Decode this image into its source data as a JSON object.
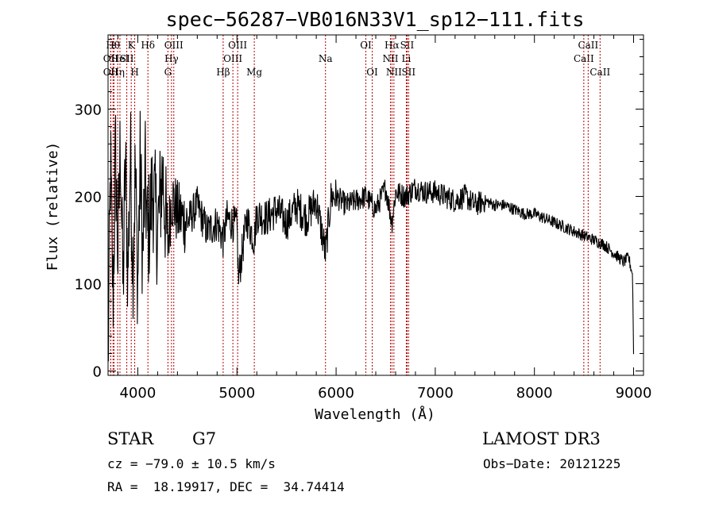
{
  "chart_data": {
    "type": "line",
    "title": "spec−56287−VB016N33V1_sp12−111.fits",
    "xlabel": "Wavelength (Å)",
    "ylabel": "Flux (relative)",
    "xlim": [
      3700,
      9100
    ],
    "ylim": [
      -5,
      385
    ],
    "xticks": [
      4000,
      5000,
      6000,
      7000,
      8000,
      9000
    ],
    "yticks": [
      0,
      100,
      200,
      300
    ],
    "xtick_labels": [
      "4000",
      "5000",
      "6000",
      "7000",
      "8000",
      "9000"
    ],
    "ytick_labels": [
      "0",
      "100",
      "200",
      "300"
    ],
    "series": [
      {
        "name": "flux",
        "x": [
          3700,
          3725,
          3750,
          3775,
          3800,
          3825,
          3850,
          3875,
          3900,
          3925,
          3950,
          3975,
          4000,
          4025,
          4050,
          4075,
          4100,
          4150,
          4200,
          4250,
          4300,
          4340,
          4400,
          4500,
          4600,
          4700,
          4800,
          4861,
          4900,
          5000,
          5015,
          5100,
          5175,
          5200,
          5300,
          5400,
          5500,
          5600,
          5700,
          5800,
          5893,
          5950,
          6000,
          6100,
          6200,
          6300,
          6400,
          6500,
          6563,
          6600,
          6700,
          6800,
          6900,
          7000,
          7100,
          7200,
          7300,
          7400,
          7500,
          7600,
          7700,
          7800,
          7900,
          8000,
          8100,
          8200,
          8300,
          8400,
          8500,
          8600,
          8700,
          8800,
          8850,
          8900,
          8950,
          8990,
          9000
        ],
        "y": [
          0,
          240,
          80,
          250,
          130,
          270,
          90,
          240,
          110,
          250,
          120,
          230,
          100,
          240,
          130,
          220,
          150,
          210,
          160,
          230,
          140,
          200,
          180,
          170,
          190,
          160,
          170,
          150,
          175,
          165,
          105,
          175,
          150,
          180,
          175,
          185,
          170,
          190,
          175,
          195,
          135,
          200,
          200,
          190,
          195,
          200,
          185,
          210,
          170,
          205,
          200,
          210,
          205,
          205,
          200,
          195,
          200,
          190,
          195,
          190,
          190,
          185,
          180,
          180,
          175,
          170,
          165,
          160,
          155,
          150,
          145,
          135,
          130,
          125,
          130,
          110,
          20
        ]
      }
    ],
    "line_markers": [
      {
        "x": 3727,
        "label": "OII",
        "row": 2
      },
      {
        "x": 3727,
        "label": "OII",
        "row": 3
      },
      {
        "x": 3750,
        "label": "Hθ",
        "row": 1
      },
      {
        "x": 3760,
        "label": "ϵ",
        "row": 1
      },
      {
        "x": 3797,
        "label": "Hη",
        "row": 3
      },
      {
        "x": 3820,
        "label": "HeI",
        "row": 2
      },
      {
        "x": 3889,
        "label": "SII",
        "row": 2
      },
      {
        "x": 3934,
        "label": "K",
        "row": 1
      },
      {
        "x": 3969,
        "label": "H",
        "row": 3
      },
      {
        "x": 4102,
        "label": "Hδ",
        "row": 1
      },
      {
        "x": 4304,
        "label": "G",
        "row": 3
      },
      {
        "x": 4340,
        "label": "Hγ",
        "row": 2
      },
      {
        "x": 4363,
        "label": "OIII",
        "row": 1
      },
      {
        "x": 4861,
        "label": "Hβ",
        "row": 3
      },
      {
        "x": 4959,
        "label": "OIII",
        "row": 2
      },
      {
        "x": 5007,
        "label": "OIII",
        "row": 1
      },
      {
        "x": 5175,
        "label": "Mg",
        "row": 3
      },
      {
        "x": 5893,
        "label": "Na",
        "row": 2
      },
      {
        "x": 6300,
        "label": "OI",
        "row": 1
      },
      {
        "x": 6364,
        "label": "OI",
        "row": 3
      },
      {
        "x": 6548,
        "label": "NII",
        "row": 2
      },
      {
        "x": 6563,
        "label": "Hα",
        "row": 1
      },
      {
        "x": 6583,
        "label": "NII",
        "row": 3
      },
      {
        "x": 6708,
        "label": "Li",
        "row": 2
      },
      {
        "x": 6716,
        "label": "SII",
        "row": 1
      },
      {
        "x": 6731,
        "label": "SII",
        "row": 3
      },
      {
        "x": 8498,
        "label": "CaII",
        "row": 2
      },
      {
        "x": 8542,
        "label": "CaII",
        "row": 1
      },
      {
        "x": 8662,
        "label": "CaII",
        "row": 3
      }
    ]
  },
  "info": {
    "object_class": "STAR",
    "subclass": "G7",
    "survey": "LAMOST DR3",
    "redshift": "cz = −79.0 ± 10.5 km/s",
    "obs_date": "Obs−Date: 20121225",
    "coords": "RA =  18.19917, DEC =  34.74414"
  },
  "colors": {
    "spectrum": "#000000",
    "line_marker": "#b30000",
    "axes": "#000000",
    "background": "#ffffff"
  }
}
